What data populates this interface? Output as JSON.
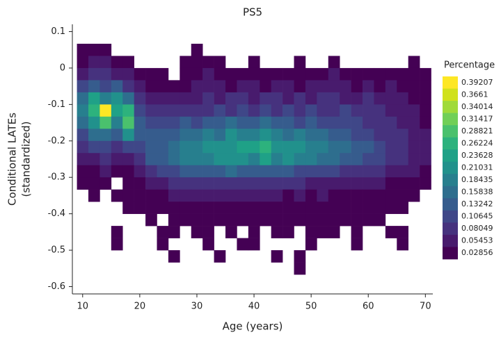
{
  "chart_data": {
    "type": "heatmap2d",
    "title": "PS5",
    "xlabel": "Age (years)",
    "ylabel": [
      "Conditional LATEs",
      "(standardized)"
    ],
    "xlim": [
      8.2,
      71.3
    ],
    "ylim": [
      -0.62,
      0.12
    ],
    "xticks": [
      10,
      20,
      30,
      40,
      50,
      60,
      70
    ],
    "yticks": [
      0.1,
      0,
      -0.1,
      -0.2,
      -0.3,
      -0.4,
      -0.5,
      -0.6
    ],
    "x_bins": [
      9,
      11,
      13,
      15,
      17,
      19,
      21,
      23,
      25,
      27,
      29,
      31,
      33,
      35,
      37,
      39,
      41,
      43,
      45,
      47,
      49,
      51,
      53,
      55,
      57,
      59,
      61,
      63,
      65,
      67,
      69,
      71
    ],
    "y_bins": [
      0.0667,
      0.0333,
      0,
      -0.0333,
      -0.0667,
      -0.1,
      -0.1333,
      -0.1667,
      -0.2,
      -0.2333,
      -0.2667,
      -0.3,
      -0.3333,
      -0.3667,
      -0.4,
      -0.4333,
      -0.4667,
      -0.5,
      -0.5333,
      -0.5667
    ],
    "z": [
      [
        0.03,
        0.03,
        0.03,
        null,
        null,
        null,
        null,
        null,
        null,
        null,
        0.03,
        null,
        null,
        null,
        null,
        null,
        null,
        null,
        null,
        null,
        null,
        null,
        null,
        null,
        null,
        null,
        null,
        null,
        null,
        null,
        null
      ],
      [
        0.03,
        0.05,
        0.05,
        0.03,
        0.03,
        null,
        null,
        null,
        null,
        0.03,
        0.03,
        0.03,
        0.03,
        null,
        null,
        0.03,
        null,
        null,
        null,
        0.03,
        null,
        null,
        0.03,
        null,
        null,
        null,
        null,
        null,
        null,
        0.03,
        null
      ],
      [
        0.05,
        0.08,
        0.08,
        0.05,
        0.05,
        0.03,
        0.03,
        0.03,
        null,
        0.03,
        0.03,
        0.05,
        0.03,
        0.03,
        0.03,
        0.03,
        0.03,
        0.03,
        0.03,
        0.03,
        0.03,
        0.03,
        0.05,
        0.03,
        0.03,
        0.03,
        0.03,
        0.03,
        0.03,
        0.03,
        0.03
      ],
      [
        0.11,
        0.13,
        0.11,
        0.13,
        0.08,
        0.05,
        0.03,
        0.03,
        0.03,
        0.03,
        0.05,
        0.05,
        0.05,
        0.03,
        0.05,
        0.05,
        0.03,
        0.05,
        0.05,
        0.03,
        0.05,
        0.05,
        0.05,
        0.05,
        0.03,
        0.05,
        0.03,
        0.05,
        0.03,
        0.03,
        0.03
      ],
      [
        0.16,
        0.24,
        0.18,
        0.21,
        0.16,
        0.08,
        0.05,
        0.05,
        0.05,
        0.05,
        0.05,
        0.08,
        0.05,
        0.08,
        0.08,
        0.05,
        0.08,
        0.08,
        0.05,
        0.08,
        0.05,
        0.08,
        0.08,
        0.05,
        0.05,
        0.08,
        0.05,
        0.05,
        0.05,
        0.03,
        0.03
      ],
      [
        0.18,
        0.26,
        0.39,
        0.24,
        0.26,
        0.11,
        0.08,
        0.08,
        0.08,
        0.08,
        0.08,
        0.08,
        0.11,
        0.08,
        0.11,
        0.08,
        0.11,
        0.08,
        0.11,
        0.08,
        0.11,
        0.08,
        0.08,
        0.11,
        0.08,
        0.08,
        0.08,
        0.05,
        0.05,
        0.05,
        0.03
      ],
      [
        0.16,
        0.21,
        0.29,
        0.18,
        0.29,
        0.13,
        0.11,
        0.11,
        0.11,
        0.13,
        0.11,
        0.13,
        0.13,
        0.16,
        0.13,
        0.13,
        0.16,
        0.13,
        0.13,
        0.11,
        0.13,
        0.11,
        0.11,
        0.11,
        0.11,
        0.08,
        0.08,
        0.08,
        0.05,
        0.05,
        0.03
      ],
      [
        0.11,
        0.16,
        0.16,
        0.13,
        0.21,
        0.13,
        0.13,
        0.13,
        0.13,
        0.16,
        0.16,
        0.18,
        0.16,
        0.21,
        0.18,
        0.18,
        0.21,
        0.18,
        0.16,
        0.18,
        0.16,
        0.16,
        0.13,
        0.13,
        0.11,
        0.11,
        0.08,
        0.08,
        0.08,
        0.05,
        0.05
      ],
      [
        0.08,
        0.11,
        0.11,
        0.08,
        0.11,
        0.11,
        0.13,
        0.13,
        0.16,
        0.18,
        0.18,
        0.21,
        0.21,
        0.21,
        0.24,
        0.24,
        0.26,
        0.21,
        0.21,
        0.21,
        0.18,
        0.18,
        0.16,
        0.16,
        0.13,
        0.13,
        0.11,
        0.08,
        0.08,
        0.05,
        0.05
      ],
      [
        0.05,
        0.05,
        0.08,
        0.05,
        0.05,
        0.08,
        0.13,
        0.13,
        0.16,
        0.18,
        0.18,
        0.18,
        0.21,
        0.21,
        0.21,
        0.18,
        0.24,
        0.18,
        0.21,
        0.18,
        0.18,
        0.16,
        0.16,
        0.13,
        0.13,
        0.11,
        0.11,
        0.08,
        0.08,
        0.05,
        0.05
      ],
      [
        0.03,
        0.03,
        0.05,
        0.03,
        0.03,
        0.05,
        0.08,
        0.11,
        0.11,
        0.13,
        0.13,
        0.13,
        0.13,
        0.16,
        0.13,
        0.13,
        0.13,
        0.13,
        0.13,
        0.11,
        0.11,
        0.11,
        0.11,
        0.08,
        0.08,
        0.08,
        0.08,
        0.05,
        0.05,
        0.05,
        0.03
      ],
      [
        0.03,
        0.03,
        0.03,
        null,
        0.03,
        0.03,
        0.05,
        0.05,
        0.08,
        0.08,
        0.08,
        0.08,
        0.08,
        0.08,
        0.08,
        0.08,
        0.08,
        0.08,
        0.08,
        0.08,
        0.05,
        0.05,
        0.05,
        0.05,
        0.05,
        0.05,
        0.05,
        0.03,
        0.03,
        0.03,
        0.03
      ],
      [
        null,
        0.03,
        null,
        0.03,
        0.03,
        0.03,
        0.03,
        0.03,
        0.05,
        0.05,
        0.05,
        0.05,
        0.05,
        0.05,
        0.05,
        0.05,
        0.05,
        0.05,
        0.03,
        0.05,
        0.03,
        0.05,
        0.03,
        0.03,
        0.03,
        0.03,
        0.03,
        0.03,
        0.03,
        0.03,
        null
      ],
      [
        null,
        null,
        null,
        null,
        0.03,
        0.03,
        0.03,
        0.03,
        0.03,
        0.03,
        0.03,
        0.03,
        0.03,
        0.03,
        0.03,
        0.03,
        0.03,
        0.03,
        0.03,
        0.03,
        0.03,
        0.03,
        0.03,
        0.03,
        0.03,
        0.03,
        0.03,
        0.03,
        0.03,
        null,
        null
      ],
      [
        null,
        null,
        null,
        null,
        null,
        null,
        0.03,
        null,
        0.03,
        0.03,
        0.03,
        0.03,
        0.03,
        0.03,
        0.03,
        0.03,
        0.03,
        0.03,
        0.03,
        0.03,
        0.03,
        0.03,
        0.03,
        0.03,
        0.03,
        0.03,
        0.03,
        null,
        null,
        null,
        null
      ],
      [
        null,
        null,
        null,
        0.03,
        null,
        null,
        null,
        0.03,
        0.03,
        null,
        0.03,
        0.03,
        null,
        0.03,
        null,
        0.03,
        null,
        0.03,
        0.03,
        null,
        0.03,
        0.03,
        0.03,
        null,
        0.03,
        null,
        null,
        0.03,
        0.03,
        null,
        null
      ],
      [
        null,
        null,
        null,
        0.03,
        null,
        null,
        null,
        0.03,
        null,
        null,
        null,
        0.03,
        null,
        null,
        0.03,
        0.03,
        null,
        null,
        null,
        null,
        0.03,
        null,
        null,
        null,
        0.03,
        null,
        null,
        null,
        0.03,
        null,
        null
      ],
      [
        null,
        null,
        null,
        null,
        null,
        null,
        null,
        null,
        0.03,
        null,
        null,
        null,
        0.03,
        null,
        null,
        null,
        null,
        0.03,
        null,
        0.03,
        null,
        null,
        null,
        null,
        null,
        null,
        null,
        null,
        null,
        null,
        null
      ],
      [
        null,
        null,
        null,
        null,
        null,
        null,
        null,
        null,
        null,
        null,
        null,
        null,
        null,
        null,
        null,
        null,
        null,
        null,
        null,
        0.03,
        null,
        null,
        null,
        null,
        null,
        null,
        null,
        null,
        null,
        null,
        null
      ]
    ],
    "colorbar": {
      "title": "Percentage",
      "levels": [
        0.02856,
        0.05453,
        0.08049,
        0.10645,
        0.13242,
        0.15838,
        0.18435,
        0.21031,
        0.23628,
        0.26224,
        0.28821,
        0.31417,
        0.34014,
        0.3661,
        0.39207
      ],
      "colors": [
        "#440154",
        "#481b6d",
        "#46327e",
        "#3f4788",
        "#365c8d",
        "#2e6e8e",
        "#277f8e",
        "#21918c",
        "#1fa187",
        "#2db27d",
        "#4ac16d",
        "#71cf57",
        "#a0da39",
        "#d0e11c",
        "#fde725"
      ]
    }
  }
}
